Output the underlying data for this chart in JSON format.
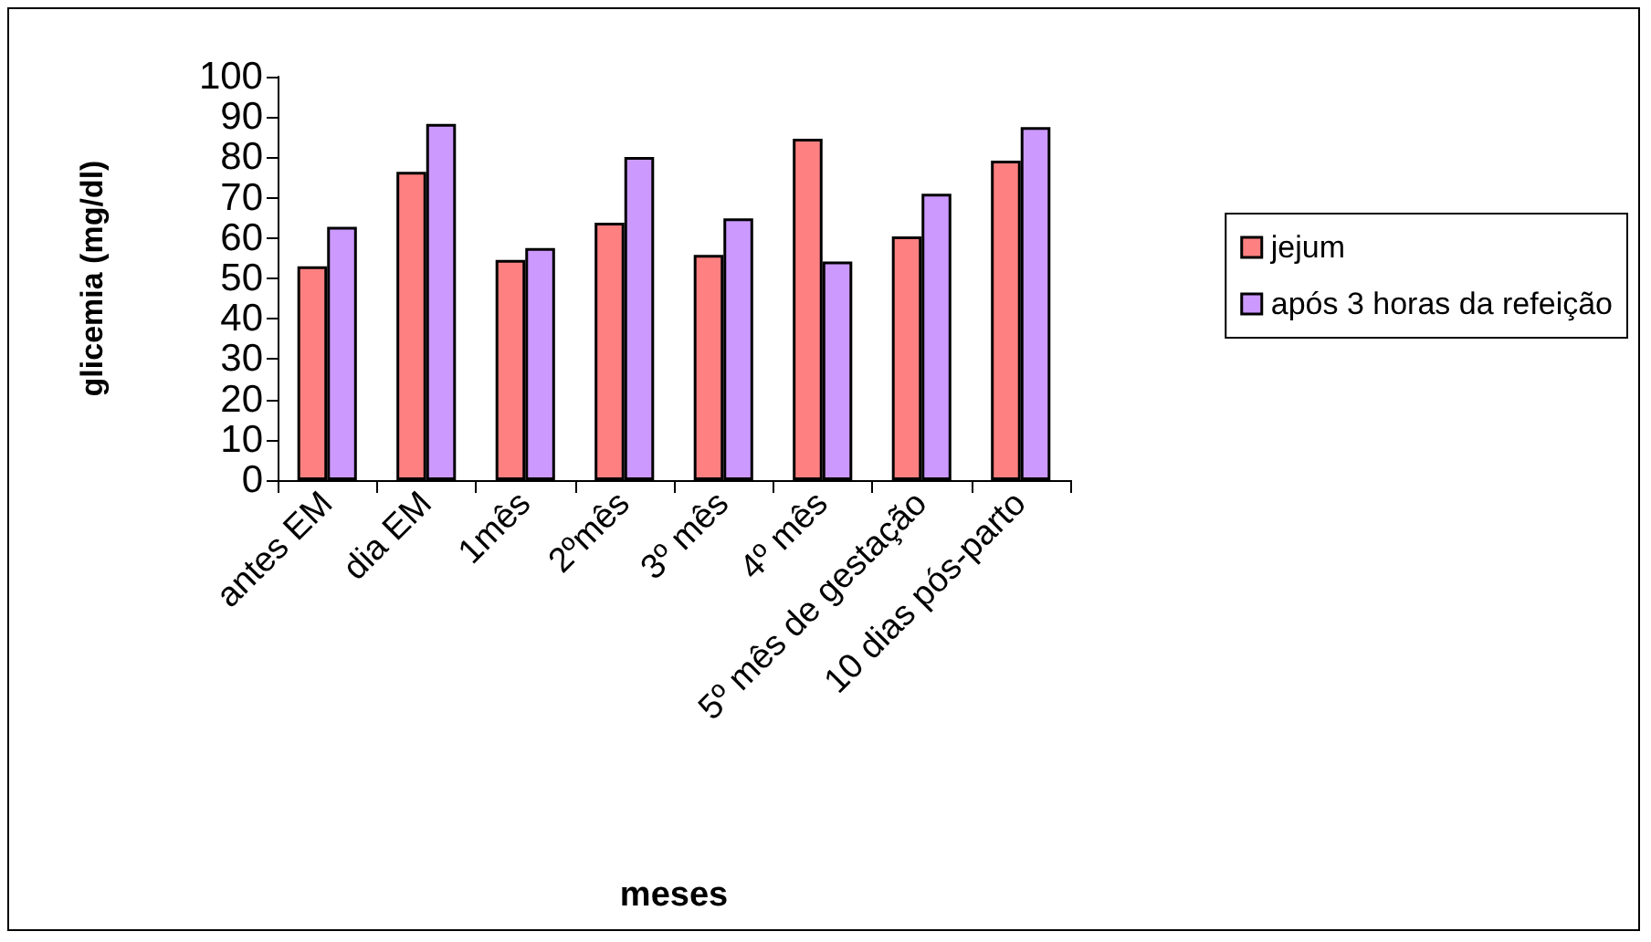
{
  "chart_data": {
    "type": "bar",
    "xlabel": "meses",
    "ylabel": "glicemia (mg/dl)",
    "categories": [
      "antes EM",
      "dia EM",
      "1mês",
      "2ºmês",
      "3º mês",
      "4º mês",
      "5º mês de gestação",
      "10 dias pós-parto"
    ],
    "series": [
      {
        "name": "jejum",
        "color": "#ff8080",
        "values": [
          53,
          76.4,
          54.6,
          63.8,
          55.8,
          84.6,
          60.4,
          79.2
        ]
      },
      {
        "name": "após 3 horas da refeição",
        "color": "#cc99ff",
        "values": [
          62.8,
          88.3,
          57.5,
          80.1,
          64.9,
          54.2,
          71,
          87.5
        ]
      }
    ],
    "ylim": [
      0,
      100
    ],
    "yticks": [
      0,
      10,
      20,
      30,
      40,
      50,
      60,
      70,
      80,
      90,
      100
    ],
    "grid": false,
    "legend": "right"
  }
}
